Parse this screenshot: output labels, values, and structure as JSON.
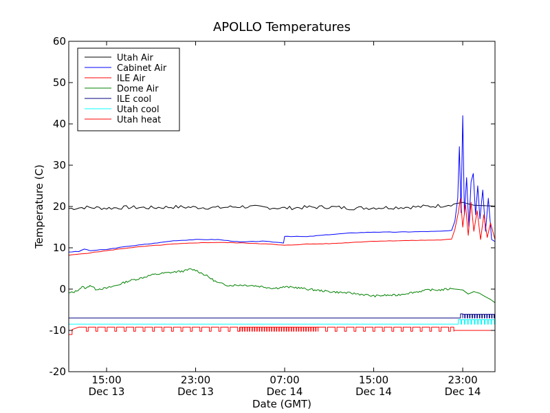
{
  "chart_data": {
    "type": "line",
    "title": "APOLLO Temperatures",
    "xlabel": "Date (GMT)",
    "ylabel": "Temperature (C)",
    "ylim": [
      -20,
      60
    ],
    "xlim_hours": [
      11.6,
      49.9
    ],
    "grid": false,
    "legend_position": "top-left",
    "yticks": [
      {
        "value": -20,
        "label": "-20"
      },
      {
        "value": -10,
        "label": "-10"
      },
      {
        "value": 0,
        "label": "0"
      },
      {
        "value": 10,
        "label": "10"
      },
      {
        "value": 20,
        "label": "20"
      },
      {
        "value": 30,
        "label": "30"
      },
      {
        "value": 40,
        "label": "40"
      },
      {
        "value": 50,
        "label": "50"
      },
      {
        "value": 60,
        "label": "60"
      }
    ],
    "xticks": [
      {
        "hours": 15,
        "time": "15:00",
        "date": "Dec 13"
      },
      {
        "hours": 23,
        "time": "23:00",
        "date": "Dec 13"
      },
      {
        "hours": 31,
        "time": "07:00",
        "date": "Dec 14"
      },
      {
        "hours": 39,
        "time": "15:00",
        "date": "Dec 14"
      },
      {
        "hours": 47,
        "time": "23:00",
        "date": "Dec 14"
      }
    ],
    "series": [
      {
        "name": "Utah Air",
        "color": "#000000",
        "points": [
          [
            11.6,
            19.5
          ],
          [
            13,
            19.8
          ],
          [
            15,
            19.6
          ],
          [
            17,
            19.8
          ],
          [
            19,
            19.7
          ],
          [
            21,
            19.9
          ],
          [
            23,
            19.8
          ],
          [
            25,
            19.7
          ],
          [
            27,
            20.0
          ],
          [
            29,
            19.8
          ],
          [
            31,
            19.6
          ],
          [
            33,
            19.8
          ],
          [
            35,
            19.9
          ],
          [
            37,
            19.6
          ],
          [
            39,
            19.7
          ],
          [
            41,
            19.8
          ],
          [
            43,
            19.9
          ],
          [
            45,
            20.2
          ],
          [
            46.2,
            20.6
          ],
          [
            47,
            21.0
          ],
          [
            48,
            20.3
          ],
          [
            49.9,
            20.1
          ]
        ]
      },
      {
        "name": "Cabinet Air",
        "color": "#0000ff",
        "points": [
          [
            11.6,
            9.0
          ],
          [
            12.5,
            9.1
          ],
          [
            13,
            9.7
          ],
          [
            13.5,
            9.3
          ],
          [
            15,
            9.6
          ],
          [
            17,
            10.4
          ],
          [
            19,
            11.0
          ],
          [
            21,
            11.7
          ],
          [
            23,
            12.0
          ],
          [
            25,
            12.0
          ],
          [
            27,
            11.4
          ],
          [
            29,
            11.6
          ],
          [
            30.9,
            11.2
          ],
          [
            31,
            12.8
          ],
          [
            33,
            12.7
          ],
          [
            35,
            13.2
          ],
          [
            37,
            13.6
          ],
          [
            39,
            13.8
          ],
          [
            41,
            13.8
          ],
          [
            43,
            13.9
          ],
          [
            45,
            14.0
          ],
          [
            46,
            14.2
          ],
          [
            46.3,
            16.5
          ],
          [
            46.55,
            22
          ],
          [
            46.7,
            34.5
          ],
          [
            46.85,
            18.5
          ],
          [
            47,
            42
          ],
          [
            47.15,
            18
          ],
          [
            47.35,
            27
          ],
          [
            47.55,
            15
          ],
          [
            47.75,
            26
          ],
          [
            47.95,
            28
          ],
          [
            48.15,
            18
          ],
          [
            48.35,
            25
          ],
          [
            48.55,
            17
          ],
          [
            48.8,
            24
          ],
          [
            49.05,
            14
          ],
          [
            49.3,
            22
          ],
          [
            49.6,
            12
          ],
          [
            49.9,
            11.5
          ]
        ]
      },
      {
        "name": "ILE Air",
        "color": "#ff0000",
        "points": [
          [
            11.6,
            8.2
          ],
          [
            13,
            8.6
          ],
          [
            15,
            9.3
          ],
          [
            17,
            10.0
          ],
          [
            19,
            10.5
          ],
          [
            21,
            10.9
          ],
          [
            23,
            11.2
          ],
          [
            25,
            11.3
          ],
          [
            27,
            11.2
          ],
          [
            29,
            11.0
          ],
          [
            31,
            10.6
          ],
          [
            33,
            10.9
          ],
          [
            35,
            11.0
          ],
          [
            37,
            11.3
          ],
          [
            39,
            11.6
          ],
          [
            41,
            11.7
          ],
          [
            43,
            11.8
          ],
          [
            45,
            11.9
          ],
          [
            46,
            12.1
          ],
          [
            46.3,
            14.5
          ],
          [
            46.6,
            18.5
          ],
          [
            46.8,
            22
          ],
          [
            47,
            15
          ],
          [
            47.25,
            20.5
          ],
          [
            47.5,
            13
          ],
          [
            47.75,
            21
          ],
          [
            48,
            14
          ],
          [
            48.3,
            19
          ],
          [
            48.6,
            12
          ],
          [
            48.9,
            18
          ],
          [
            49.2,
            12.5
          ],
          [
            49.5,
            16
          ],
          [
            49.9,
            12
          ]
        ]
      },
      {
        "name": "Dome Air",
        "color": "#008000",
        "points": [
          [
            11.6,
            -1.0
          ],
          [
            12.2,
            -0.6
          ],
          [
            12.8,
            0.5
          ],
          [
            13.2,
            0.2
          ],
          [
            13.5,
            1.0
          ],
          [
            14,
            0.0
          ],
          [
            15,
            0.2
          ],
          [
            16,
            1.0
          ],
          [
            17,
            2.0
          ],
          [
            18,
            2.6
          ],
          [
            19,
            3.4
          ],
          [
            20,
            3.8
          ],
          [
            21,
            4.1
          ],
          [
            22,
            4.4
          ],
          [
            22.5,
            4.8
          ],
          [
            23,
            4.6
          ],
          [
            24,
            3.2
          ],
          [
            25,
            1.5
          ],
          [
            26,
            0.9
          ],
          [
            27,
            1.0
          ],
          [
            28,
            0.9
          ],
          [
            29,
            0.6
          ],
          [
            30,
            0.2
          ],
          [
            31,
            0.5
          ],
          [
            32,
            0.4
          ],
          [
            33,
            0.0
          ],
          [
            35,
            -0.6
          ],
          [
            37,
            -1.0
          ],
          [
            38,
            -1.3
          ],
          [
            39,
            -1.7
          ],
          [
            40,
            -1.5
          ],
          [
            41,
            -1.5
          ],
          [
            42,
            -1.0
          ],
          [
            43,
            -0.6
          ],
          [
            44,
            -0.2
          ],
          [
            45,
            -0.2
          ],
          [
            46,
            0.1
          ],
          [
            47,
            -0.2
          ],
          [
            47.5,
            -1.2
          ],
          [
            48,
            -0.6
          ],
          [
            48.5,
            -1.0
          ],
          [
            49,
            -1.8
          ],
          [
            49.5,
            -2.5
          ],
          [
            49.9,
            -3.3
          ]
        ]
      },
      {
        "name": "ILE cool",
        "color": "#000080",
        "points": [
          [
            11.6,
            -7.0
          ],
          [
            49.9,
            -7.0
          ]
        ]
      },
      {
        "name": "Utah cool",
        "color": "#00ffff",
        "points": [
          [
            11.6,
            -8.5
          ],
          [
            49.9,
            -8.5
          ]
        ]
      },
      {
        "name": "Utah heat",
        "color": "#ff0000",
        "points": [
          [
            11.6,
            -9.2
          ],
          [
            49.9,
            -9.2
          ]
        ]
      }
    ]
  }
}
